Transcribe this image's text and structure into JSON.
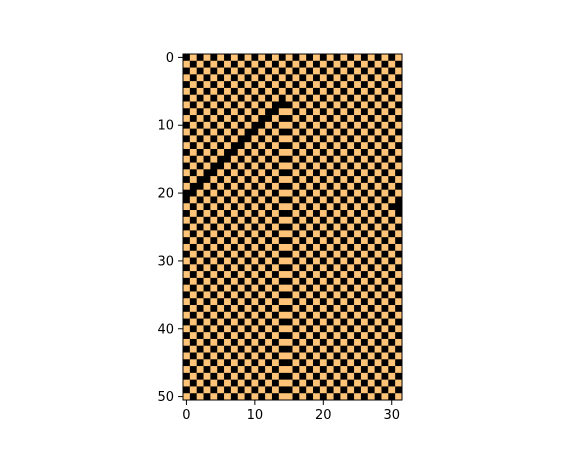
{
  "chart_data": {
    "type": "heatmap",
    "title": "",
    "xlabel": "",
    "ylabel": "",
    "xlim": [
      -0.5,
      31.5
    ],
    "ylim": [
      50.5,
      -0.5
    ],
    "xticks": [
      "0",
      "10",
      "20",
      "30"
    ],
    "yticks": [
      "0",
      "10",
      "20",
      "30",
      "40",
      "50"
    ],
    "grid": false,
    "colormap": {
      "0": "#000000",
      "1": "#ffc477"
    },
    "grid_rows": 51,
    "grid_cols": 32,
    "pattern": "Binary 51 x 32 grid: checkerboard texture at top; from row 7 a 'tree' shape centred at column 14.5 emerges, with diagonal stripes descending on both sides and the outer region turning into horizontal stripes (alternating rows) as rows increase."
  }
}
